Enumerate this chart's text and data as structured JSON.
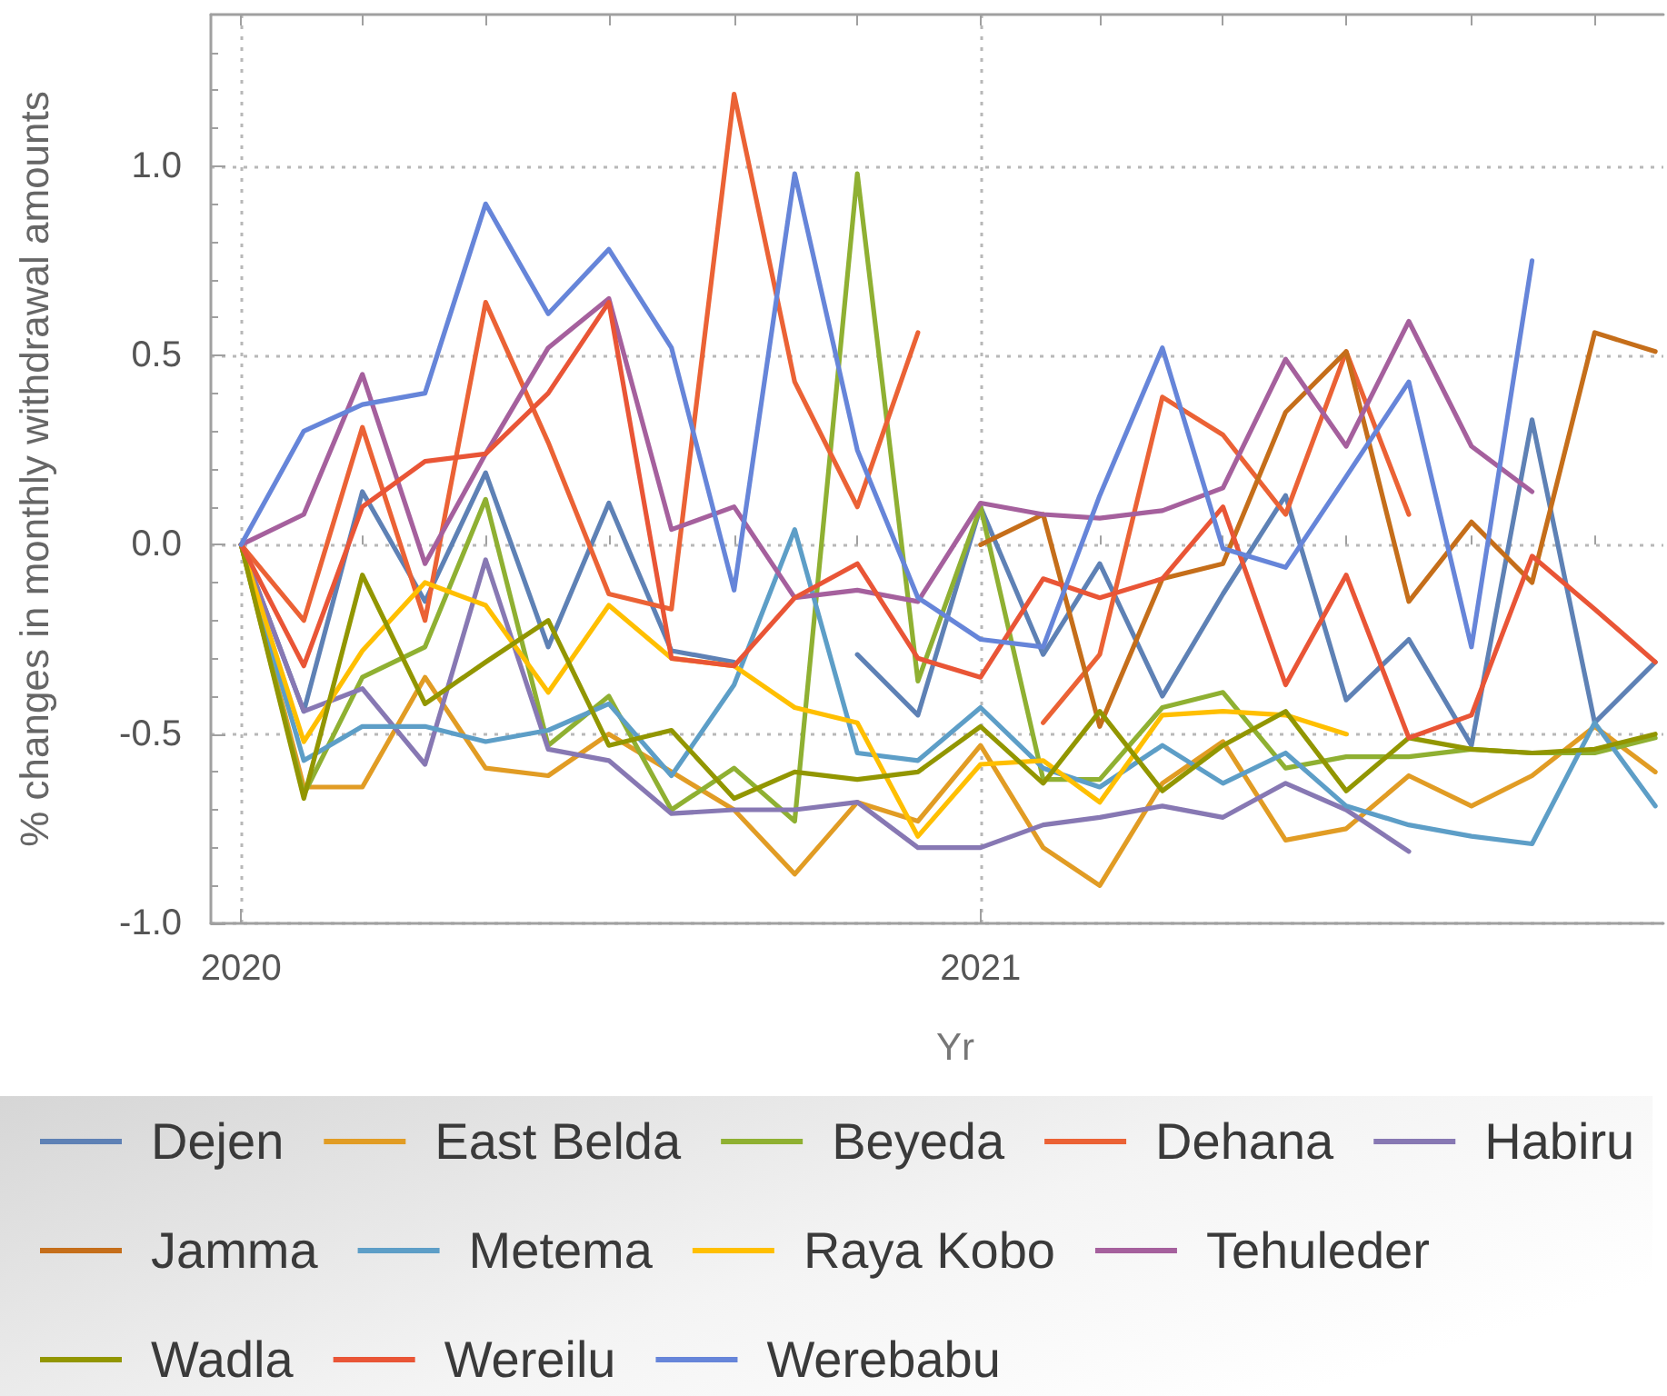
{
  "chart_data": {
    "type": "line",
    "xlabel": "Yr",
    "ylabel": "% changes in monthly withdrawal amounts",
    "x": [
      "2020-01",
      "2020-02",
      "2020-03",
      "2020-04",
      "2020-05",
      "2020-06",
      "2020-07",
      "2020-08",
      "2020-09",
      "2020-10",
      "2020-11",
      "2020-12",
      "2021-01",
      "2021-02",
      "2021-03",
      "2021-04",
      "2021-05",
      "2021-06",
      "2021-07",
      "2021-08",
      "2021-09",
      "2021-10",
      "2021-11",
      "2021-12"
    ],
    "xlim": [
      "2019-12-17",
      "2021-12-05"
    ],
    "xticks": [
      "2020",
      {
        "value": "2020-03",
        "label": null
      },
      {
        "value": "2020-05",
        "label": null
      },
      {
        "value": "2020-07",
        "label": null
      },
      {
        "value": "2020-09",
        "label": null
      },
      {
        "value": "2020-11",
        "label": null
      },
      "2021",
      {
        "value": "2021-03",
        "label": null
      },
      {
        "value": "2021-05",
        "label": null
      },
      {
        "value": "2021-07",
        "label": null
      },
      {
        "value": "2021-09",
        "label": null
      },
      {
        "value": "2021-11",
        "label": null
      }
    ],
    "ylim": [
      -1.0,
      1.4
    ],
    "yticks": [
      {
        "value": -1,
        "label": "-1.0"
      },
      {
        "value": -0.9,
        "label": null
      },
      {
        "value": -0.8,
        "label": null
      },
      {
        "value": -0.7,
        "label": null
      },
      {
        "value": -0.6,
        "label": null
      },
      -0.5,
      {
        "value": -0.4,
        "label": null
      },
      {
        "value": -0.3,
        "label": null
      },
      {
        "value": -0.2,
        "label": null
      },
      {
        "value": -0.1,
        "label": null
      },
      {
        "value": 0,
        "label": "0.0"
      },
      {
        "value": 0.1,
        "label": null
      },
      {
        "value": 0.2,
        "label": null
      },
      {
        "value": 0.3,
        "label": null
      },
      {
        "value": 0.4,
        "label": null
      },
      0.5,
      {
        "value": 0.6,
        "label": null
      },
      {
        "value": 0.7,
        "label": null
      },
      {
        "value": 0.8,
        "label": null
      },
      {
        "value": 0.9,
        "label": null
      },
      {
        "value": 1,
        "label": "1.0"
      },
      {
        "value": 1.1,
        "label": null
      },
      {
        "value": 1.2,
        "label": null
      },
      {
        "value": 1.3,
        "label": null
      }
    ],
    "grid": true,
    "legend": "bottom",
    "marker": "none",
    "line_style": "solid",
    "series": [
      {
        "name": "Dejen",
        "color": "#5e81b5",
        "values": [
          0,
          -0.44,
          0.14,
          -0.15,
          0.19,
          -0.27,
          0.11,
          -0.28,
          -0.31,
          null,
          -0.29,
          -0.45,
          0.1,
          -0.29,
          -0.05,
          -0.4,
          -0.13,
          0.13,
          -0.41,
          -0.25,
          -0.53,
          0.33,
          -0.47,
          -0.31
        ]
      },
      {
        "name": "East Belda",
        "color": "#e19c24",
        "values": [
          0,
          -0.64,
          -0.64,
          -0.35,
          -0.59,
          -0.61,
          -0.5,
          -0.6,
          -0.7,
          -0.87,
          -0.68,
          -0.73,
          -0.53,
          -0.8,
          -0.9,
          -0.63,
          -0.52,
          -0.78,
          -0.75,
          -0.61,
          -0.69,
          -0.61,
          -0.48,
          -0.6
        ]
      },
      {
        "name": "Beyeda",
        "color": "#8fb032",
        "values": [
          0,
          -0.66,
          -0.35,
          -0.27,
          0.12,
          -0.53,
          -0.4,
          -0.7,
          -0.59,
          -0.73,
          0.98,
          -0.36,
          0.1,
          -0.62,
          -0.62,
          -0.43,
          -0.39,
          -0.59,
          -0.56,
          -0.56,
          -0.54,
          -0.55,
          -0.55,
          -0.51
        ]
      },
      {
        "name": "Dehana",
        "color": "#eb6235",
        "values": [
          0,
          -0.2,
          0.31,
          -0.2,
          0.64,
          0.27,
          -0.13,
          -0.17,
          1.19,
          0.43,
          0.1,
          0.56,
          null,
          -0.47,
          -0.29,
          0.39,
          0.29,
          0.08,
          0.51,
          0.08,
          null,
          null,
          null,
          null
        ]
      },
      {
        "name": "Habiru",
        "color": "#8778b3",
        "values": [
          0,
          -0.44,
          -0.38,
          -0.58,
          -0.04,
          -0.54,
          -0.57,
          -0.71,
          -0.7,
          -0.7,
          -0.68,
          -0.8,
          -0.8,
          -0.74,
          -0.72,
          -0.69,
          -0.72,
          -0.63,
          -0.7,
          -0.81,
          null,
          null,
          null,
          null
        ]
      },
      {
        "name": "Jamma",
        "color": "#c56e1a",
        "values": [
          null,
          null,
          null,
          null,
          null,
          null,
          null,
          null,
          null,
          null,
          null,
          null,
          0,
          0.08,
          -0.48,
          -0.09,
          -0.05,
          0.35,
          0.51,
          -0.15,
          0.06,
          -0.1,
          0.56,
          0.51
        ]
      },
      {
        "name": "Metema",
        "color": "#5d9ec7",
        "values": [
          0,
          -0.57,
          -0.48,
          -0.48,
          -0.52,
          -0.49,
          -0.42,
          -0.61,
          -0.37,
          0.04,
          -0.55,
          -0.57,
          -0.43,
          -0.59,
          -0.64,
          -0.53,
          -0.63,
          -0.55,
          -0.69,
          -0.74,
          -0.77,
          -0.79,
          -0.47,
          -0.69
        ]
      },
      {
        "name": "Raya Kobo",
        "color": "#ffbf00",
        "values": [
          0,
          -0.52,
          -0.28,
          -0.1,
          -0.16,
          -0.39,
          -0.16,
          -0.3,
          -0.32,
          -0.43,
          -0.47,
          -0.77,
          -0.58,
          -0.57,
          -0.68,
          -0.45,
          -0.44,
          -0.45,
          -0.5,
          null,
          null,
          null,
          null,
          null
        ]
      },
      {
        "name": "Tehuleder",
        "color": "#a5609d",
        "values": [
          0,
          0.08,
          0.45,
          -0.05,
          0.24,
          0.52,
          0.65,
          0.04,
          0.1,
          -0.14,
          -0.12,
          -0.15,
          0.11,
          0.08,
          0.07,
          0.09,
          0.15,
          0.49,
          0.26,
          0.59,
          0.26,
          0.14,
          null,
          null
        ]
      },
      {
        "name": "Wadla",
        "color": "#929600",
        "values": [
          0,
          -0.67,
          -0.08,
          -0.42,
          -0.31,
          -0.2,
          -0.53,
          -0.49,
          -0.67,
          -0.6,
          -0.62,
          -0.6,
          -0.48,
          -0.63,
          -0.44,
          -0.65,
          -0.53,
          -0.44,
          -0.65,
          -0.51,
          -0.54,
          -0.55,
          -0.54,
          -0.5
        ]
      },
      {
        "name": "Wereilu",
        "color": "#e95536",
        "values": [
          0,
          -0.32,
          0.1,
          0.22,
          0.24,
          0.4,
          0.64,
          -0.3,
          -0.32,
          -0.14,
          -0.05,
          -0.3,
          -0.35,
          -0.09,
          -0.14,
          -0.09,
          0.1,
          -0.37,
          -0.08,
          -0.51,
          -0.45,
          -0.03,
          -0.17,
          -0.31
        ]
      },
      {
        "name": "Werebabu",
        "color": "#6685d9",
        "values": [
          0,
          0.3,
          0.37,
          0.4,
          0.9,
          0.61,
          0.78,
          0.52,
          -0.12,
          0.98,
          0.25,
          -0.14,
          -0.25,
          -0.27,
          0.13,
          0.52,
          -0.01,
          -0.06,
          0.18,
          0.43,
          -0.27,
          0.75,
          null,
          null
        ]
      }
    ]
  }
}
